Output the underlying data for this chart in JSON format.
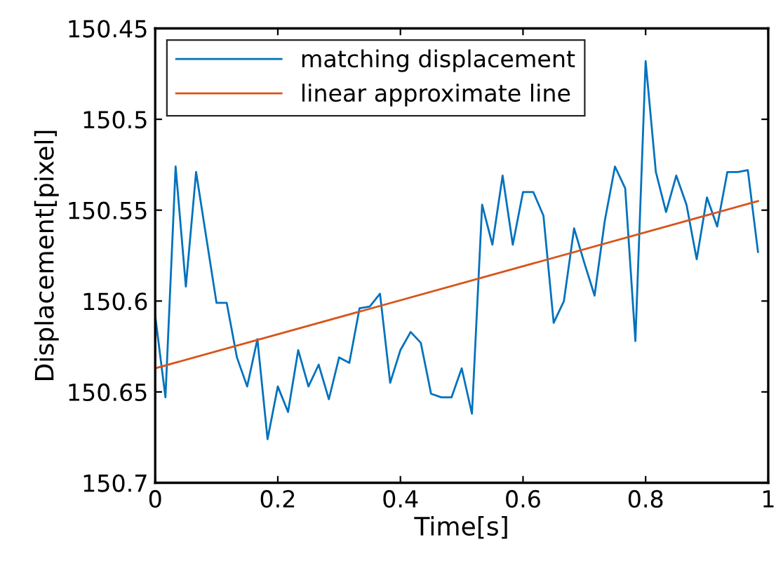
{
  "chart_data": {
    "type": "line",
    "xlabel": "Time[s]",
    "ylabel": "Displacement[pixel]",
    "xlim": [
      0,
      1
    ],
    "xticks": [
      0,
      0.2,
      0.4,
      0.6,
      0.8,
      1
    ],
    "ylim": [
      150.7,
      150.45
    ],
    "yticks": [
      150.45,
      150.5,
      150.55,
      150.6,
      150.65,
      150.7
    ],
    "grid": false,
    "legend": "top left",
    "line_style": "solid",
    "marker": "none",
    "series": [
      {
        "name": "matching displacement",
        "color": "#0072bd",
        "x": [
          0,
          0.0167,
          0.0333,
          0.05,
          0.0667,
          0.0833,
          0.1,
          0.1167,
          0.1333,
          0.15,
          0.1667,
          0.1833,
          0.2,
          0.2167,
          0.2333,
          0.25,
          0.2667,
          0.2833,
          0.3,
          0.3167,
          0.3333,
          0.35,
          0.3667,
          0.3833,
          0.4,
          0.4167,
          0.4333,
          0.45,
          0.4667,
          0.4833,
          0.5,
          0.5167,
          0.5333,
          0.55,
          0.5667,
          0.5833,
          0.6,
          0.6167,
          0.6333,
          0.65,
          0.6667,
          0.6833,
          0.7,
          0.7167,
          0.7333,
          0.75,
          0.7667,
          0.7833,
          0.8,
          0.8167,
          0.8333,
          0.85,
          0.8667,
          0.8833,
          0.9,
          0.9167,
          0.9333,
          0.95,
          0.9667,
          0.9833
        ],
        "values": [
          150.608,
          150.653,
          150.526,
          150.592,
          150.529,
          150.565,
          150.601,
          150.601,
          150.631,
          150.647,
          150.621,
          150.676,
          150.647,
          150.661,
          150.627,
          150.647,
          150.635,
          150.654,
          150.631,
          150.634,
          150.604,
          150.603,
          150.596,
          150.645,
          150.627,
          150.617,
          150.623,
          150.651,
          150.653,
          150.653,
          150.637,
          150.662,
          150.547,
          150.569,
          150.531,
          150.569,
          150.54,
          150.54,
          150.553,
          150.612,
          150.6,
          150.56,
          150.579,
          150.597,
          150.556,
          150.526,
          150.538,
          150.622,
          150.468,
          150.529,
          150.551,
          150.531,
          150.547,
          150.577,
          150.543,
          150.559,
          150.529,
          150.529,
          150.528,
          150.573
        ]
      },
      {
        "name": "linear approximate line",
        "color": "#d95319",
        "x": [
          0,
          0.9833
        ],
        "values": [
          150.637,
          150.545
        ]
      }
    ]
  }
}
